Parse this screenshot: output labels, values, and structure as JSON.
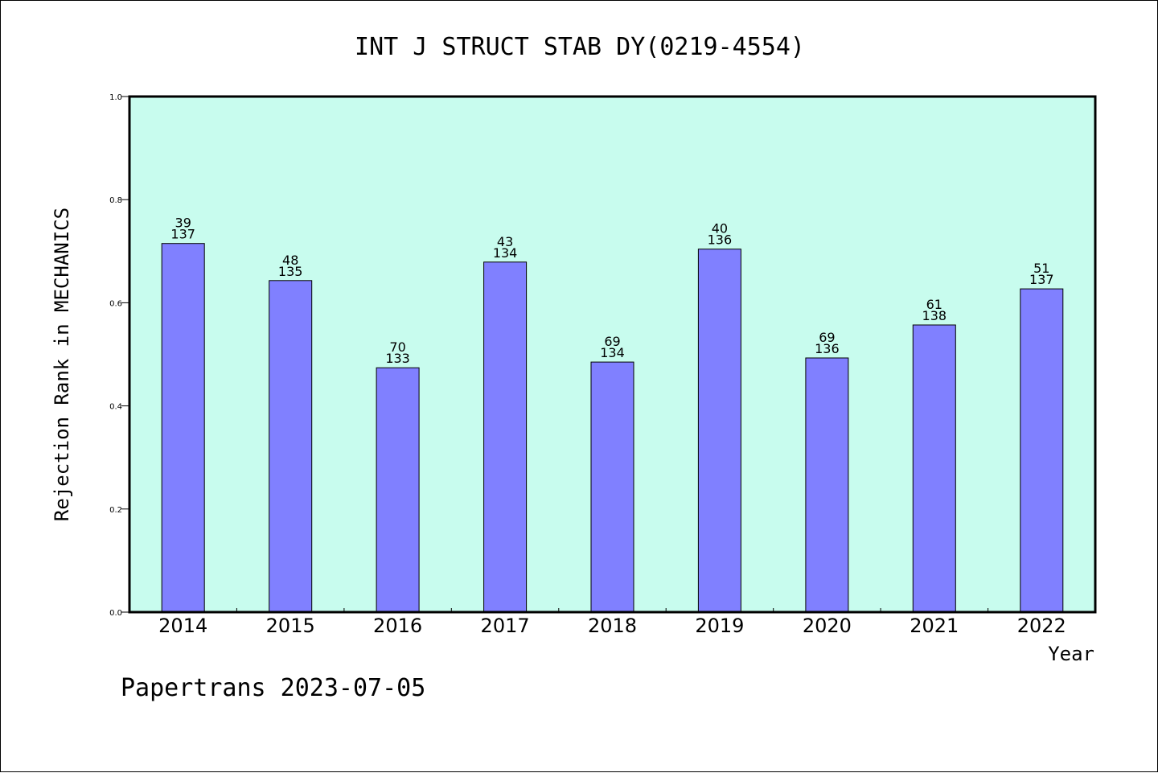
{
  "chart_data": {
    "type": "bar",
    "title": "INT J STRUCT STAB DY(0219-4554)",
    "xlabel": "Year",
    "ylabel": "Rejection Rank in MECHANICS",
    "ylim": [
      0,
      1.0
    ],
    "yticks": [
      "0.0",
      "0.2",
      "0.4",
      "0.6",
      "0.8",
      "1.0"
    ],
    "categories": [
      "2014",
      "2015",
      "2016",
      "2017",
      "2018",
      "2019",
      "2020",
      "2021",
      "2022"
    ],
    "values": [
      0.715,
      0.643,
      0.474,
      0.679,
      0.485,
      0.704,
      0.493,
      0.557,
      0.627
    ],
    "bar_labels": [
      {
        "rank": "39",
        "total": "137"
      },
      {
        "rank": "48",
        "total": "135"
      },
      {
        "rank": "70",
        "total": "133"
      },
      {
        "rank": "43",
        "total": "134"
      },
      {
        "rank": "69",
        "total": "134"
      },
      {
        "rank": "40",
        "total": "136"
      },
      {
        "rank": "69",
        "total": "136"
      },
      {
        "rank": "61",
        "total": "138"
      },
      {
        "rank": "51",
        "total": "137"
      }
    ],
    "grid": false,
    "colors": {
      "plot_background": "#c8fcee",
      "bar_fill": "#8080ff",
      "bar_stroke": "#000000",
      "axis": "#000000"
    }
  },
  "footer": {
    "credit": "Papertrans 2023-07-05"
  }
}
